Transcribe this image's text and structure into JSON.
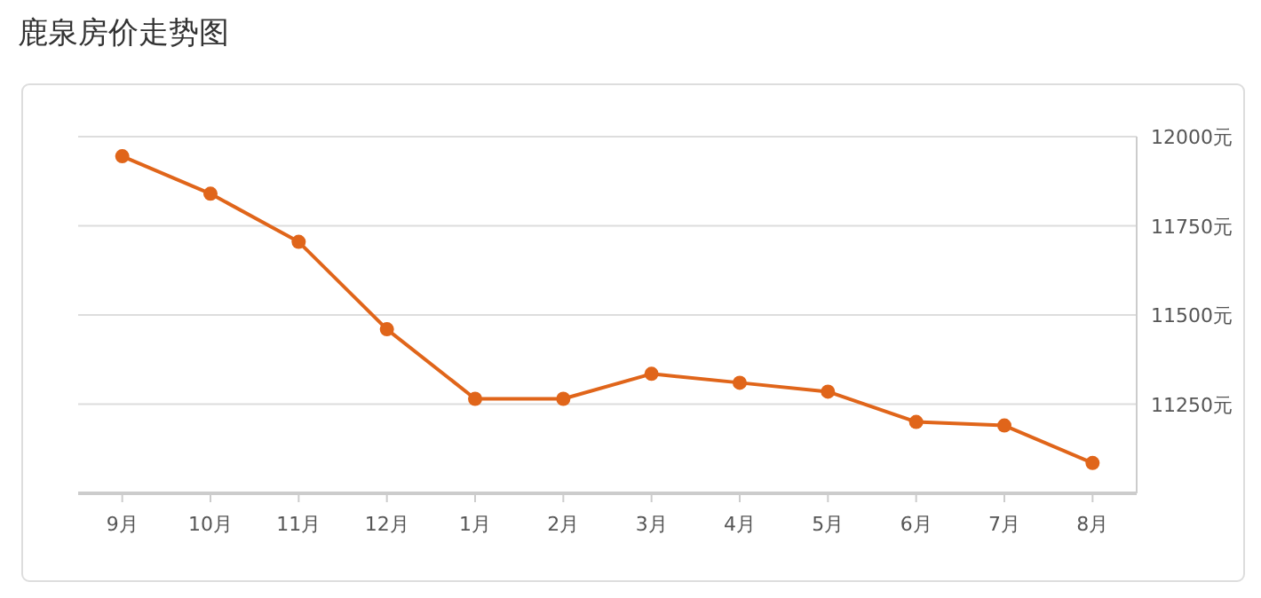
{
  "chart_data": {
    "type": "line",
    "title": "鹿泉房价走势图",
    "categories": [
      "9月",
      "10月",
      "11月",
      "12月",
      "1月",
      "2月",
      "3月",
      "4月",
      "5月",
      "6月",
      "7月",
      "8月"
    ],
    "values": [
      11945,
      11840,
      11705,
      11460,
      11265,
      11265,
      11335,
      11310,
      11285,
      11200,
      11190,
      11085
    ],
    "color": "#e0651a",
    "marker": "circle",
    "ylim": [
      11000,
      12000
    ],
    "yticks": [
      {
        "value": 11250,
        "label": "11250元"
      },
      {
        "value": 11500,
        "label": "11500元"
      },
      {
        "value": 11750,
        "label": "11750元"
      },
      {
        "value": 12000,
        "label": "12000元"
      }
    ],
    "grid": "y"
  }
}
